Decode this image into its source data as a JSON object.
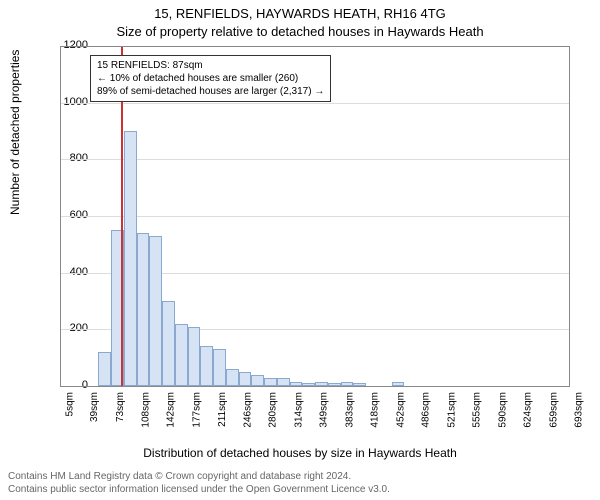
{
  "chart": {
    "type": "histogram",
    "title_main": "15, RENFIELDS, HAYWARDS HEATH, RH16 4TG",
    "title_sub": "Size of property relative to detached houses in Haywards Heath",
    "title_fontsize": 13,
    "ylabel": "Number of detached properties",
    "xlabel": "Distribution of detached houses by size in Haywards Heath",
    "label_fontsize": 12,
    "ylim": [
      0,
      1200
    ],
    "ytick_step": 200,
    "yticks": [
      0,
      200,
      400,
      600,
      800,
      1000,
      1200
    ],
    "xticks": [
      "5sqm",
      "39sqm",
      "73sqm",
      "108sqm",
      "142sqm",
      "177sqm",
      "211sqm",
      "246sqm",
      "280sqm",
      "314sqm",
      "349sqm",
      "383sqm",
      "418sqm",
      "452sqm",
      "486sqm",
      "521sqm",
      "555sqm",
      "590sqm",
      "624sqm",
      "659sqm",
      "693sqm"
    ],
    "bin_start": 5,
    "bin_width": 17.2,
    "n_bins": 40,
    "x_range": [
      5,
      693
    ],
    "bar_color": "#d6e3f5",
    "bar_border": "#8aa8d0",
    "grid_color": "#dcdcdc",
    "background_color": "#ffffff",
    "axis_color": "#888888",
    "vline_x": 87,
    "vline_color": "#cc3333",
    "values": [
      0,
      0,
      0,
      120,
      550,
      900,
      540,
      530,
      300,
      220,
      210,
      140,
      130,
      60,
      50,
      40,
      30,
      30,
      15,
      10,
      15,
      10,
      15,
      10,
      0,
      0,
      15,
      0,
      0,
      0,
      0,
      0,
      0,
      0,
      0,
      0,
      0,
      0,
      0,
      0
    ],
    "annot": {
      "lines": [
        "15 RENFIELDS: 87sqm",
        "← 10% of detached houses are smaller (260)",
        "89% of semi-detached houses are larger (2,317) →"
      ],
      "fontsize": 10,
      "border_color": "#333333"
    }
  },
  "footer": {
    "line1": "Contains HM Land Registry data © Crown copyright and database right 2024.",
    "line2": "Contains public sector information licensed under the Open Government Licence v3.0.",
    "color": "#666666",
    "fontsize": 10
  }
}
